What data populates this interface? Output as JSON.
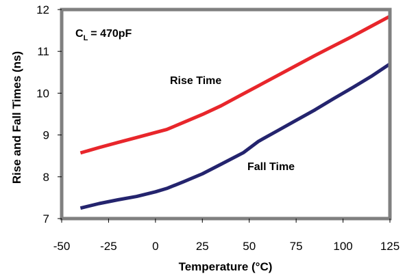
{
  "chart_data": {
    "type": "line",
    "xlabel": "Temperature (°C)",
    "ylabel": "Rise and Fall Times (ns)",
    "xlim": [
      -50,
      125
    ],
    "ylim": [
      7,
      12
    ],
    "xticks": [
      "-50",
      "-25",
      "0",
      "25",
      "50",
      "75",
      "100",
      "125"
    ],
    "yticks": [
      "7",
      "8",
      "9",
      "10",
      "11",
      "12"
    ],
    "grid": false,
    "condition": {
      "main": "C",
      "sub": "L",
      "value": "= 470pF"
    },
    "series": [
      {
        "name": "Rise Time",
        "color": "#e8262b",
        "x": [
          -40,
          -30,
          -20,
          -10,
          0,
          6,
          15,
          25,
          35,
          45,
          55,
          65,
          75,
          85,
          95,
          105,
          115,
          125
        ],
        "y": [
          8.57,
          8.7,
          8.82,
          8.94,
          9.06,
          9.13,
          9.3,
          9.49,
          9.7,
          9.94,
          10.18,
          10.42,
          10.66,
          10.9,
          11.13,
          11.36,
          11.6,
          11.84
        ]
      },
      {
        "name": "Fall Time",
        "color": "#24246e",
        "x": [
          -40,
          -30,
          -20,
          -10,
          0,
          6,
          15,
          25,
          35,
          47,
          55,
          65,
          75,
          85,
          95,
          105,
          115,
          125
        ],
        "y": [
          7.25,
          7.36,
          7.45,
          7.53,
          7.64,
          7.72,
          7.88,
          8.07,
          8.3,
          8.58,
          8.85,
          9.1,
          9.35,
          9.6,
          9.87,
          10.13,
          10.4,
          10.7
        ]
      }
    ]
  }
}
